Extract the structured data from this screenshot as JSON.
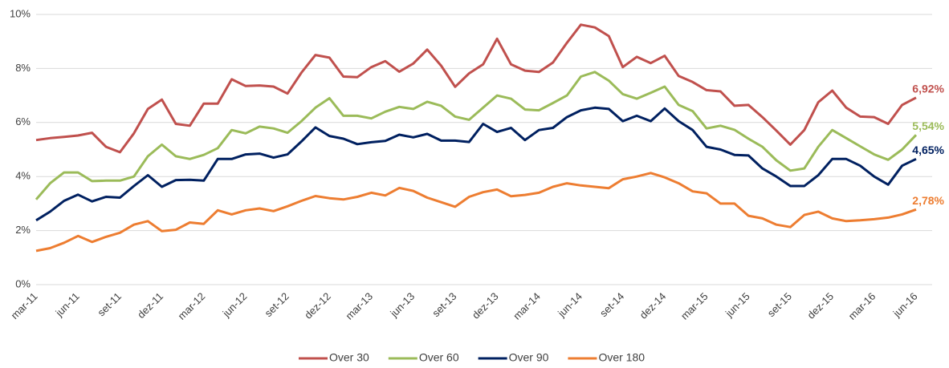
{
  "chart_data": {
    "type": "line",
    "categories": [
      "mar-11",
      null,
      null,
      "jun-11",
      null,
      null,
      "set-11",
      null,
      null,
      "dez-11",
      null,
      null,
      "mar-12",
      null,
      null,
      "jun-12",
      null,
      null,
      "set-12",
      null,
      null,
      "dez-12",
      null,
      null,
      "mar-13",
      null,
      null,
      "jun-13",
      null,
      null,
      "set-13",
      null,
      null,
      "dez-13",
      null,
      null,
      "mar-14",
      null,
      null,
      "jun-14",
      null,
      null,
      "set-14",
      null,
      null,
      "dez-14",
      null,
      null,
      "mar-15",
      null,
      null,
      "jun-15",
      null,
      null,
      "set-15",
      null,
      null,
      "dez-15",
      null,
      null,
      "mar-16",
      null,
      null,
      "jun-16"
    ],
    "series": [
      {
        "name": "Over 30",
        "color": "#c0504d",
        "values": [
          5.35,
          5.42,
          5.47,
          5.52,
          5.62,
          5.1,
          4.9,
          5.6,
          6.5,
          6.85,
          5.95,
          5.88,
          6.7,
          6.7,
          7.6,
          7.35,
          7.37,
          7.33,
          7.07,
          7.85,
          8.5,
          8.4,
          7.7,
          7.68,
          8.05,
          8.27,
          7.88,
          8.18,
          8.7,
          8.1,
          7.32,
          7.82,
          8.15,
          9.1,
          8.15,
          7.92,
          7.87,
          8.22,
          8.95,
          9.62,
          9.52,
          9.2,
          8.05,
          8.43,
          8.2,
          8.47,
          7.72,
          7.5,
          7.2,
          7.15,
          6.62,
          6.65,
          6.2,
          5.7,
          5.18,
          5.72,
          6.75,
          7.18,
          6.55,
          6.22,
          6.2,
          5.95,
          6.65,
          6.92
        ],
        "value_labels": {
          "63": "6,92%"
        }
      },
      {
        "name": "Over 60",
        "color": "#9bbb59",
        "values": [
          3.15,
          3.75,
          4.15,
          4.15,
          3.83,
          3.85,
          3.85,
          4.0,
          4.75,
          5.18,
          4.75,
          4.65,
          4.8,
          5.05,
          5.72,
          5.6,
          5.85,
          5.78,
          5.62,
          6.05,
          6.55,
          6.9,
          6.25,
          6.25,
          6.15,
          6.4,
          6.58,
          6.5,
          6.77,
          6.62,
          6.22,
          6.1,
          6.55,
          7.0,
          6.88,
          6.48,
          6.45,
          6.72,
          7.0,
          7.7,
          7.87,
          7.55,
          7.05,
          6.88,
          7.1,
          7.33,
          6.65,
          6.42,
          5.78,
          5.88,
          5.73,
          5.4,
          5.1,
          4.6,
          4.22,
          4.3,
          5.1,
          5.72,
          5.42,
          5.12,
          4.82,
          4.62,
          5.0,
          5.54
        ],
        "value_labels": {
          "63": "5,54%"
        }
      },
      {
        "name": "Over 90",
        "color": "#002060",
        "values": [
          2.38,
          2.7,
          3.1,
          3.33,
          3.08,
          3.25,
          3.22,
          3.65,
          4.05,
          3.62,
          3.87,
          3.88,
          3.85,
          4.65,
          4.65,
          4.82,
          4.85,
          4.7,
          4.82,
          5.3,
          5.82,
          5.5,
          5.4,
          5.2,
          5.27,
          5.32,
          5.55,
          5.45,
          5.58,
          5.33,
          5.33,
          5.28,
          5.95,
          5.65,
          5.8,
          5.35,
          5.72,
          5.8,
          6.2,
          6.45,
          6.55,
          6.5,
          6.05,
          6.25,
          6.05,
          6.52,
          6.05,
          5.72,
          5.1,
          5.0,
          4.8,
          4.78,
          4.3,
          4.0,
          3.65,
          3.65,
          4.05,
          4.65,
          4.65,
          4.4,
          4.0,
          3.7,
          4.4,
          4.65
        ],
        "value_labels": {
          "63": "4,65%"
        }
      },
      {
        "name": "Over 180",
        "color": "#ed7d31",
        "values": [
          1.25,
          1.35,
          1.55,
          1.8,
          1.58,
          1.77,
          1.92,
          2.22,
          2.35,
          1.98,
          2.03,
          2.3,
          2.25,
          2.75,
          2.6,
          2.75,
          2.82,
          2.72,
          2.9,
          3.1,
          3.28,
          3.2,
          3.15,
          3.25,
          3.4,
          3.3,
          3.58,
          3.47,
          3.22,
          3.05,
          2.88,
          3.25,
          3.42,
          3.52,
          3.27,
          3.32,
          3.4,
          3.62,
          3.75,
          3.67,
          3.62,
          3.57,
          3.9,
          4.0,
          4.13,
          3.97,
          3.75,
          3.45,
          3.38,
          3.0,
          3.0,
          2.55,
          2.45,
          2.22,
          2.13,
          2.58,
          2.7,
          2.45,
          2.35,
          2.38,
          2.42,
          2.48,
          2.6,
          2.78
        ],
        "value_labels": {
          "63": "2,78%"
        }
      }
    ],
    "ylim": [
      0,
      10
    ],
    "yticks": [
      {
        "value": 0,
        "label": "0%"
      },
      {
        "value": 2,
        "label": "2%"
      },
      {
        "value": 4,
        "label": "4%"
      },
      {
        "value": 6,
        "label": "6%"
      },
      {
        "value": 8,
        "label": "8%"
      },
      {
        "value": 10,
        "label": "10%"
      }
    ],
    "grid": true,
    "legend": "bottom"
  }
}
